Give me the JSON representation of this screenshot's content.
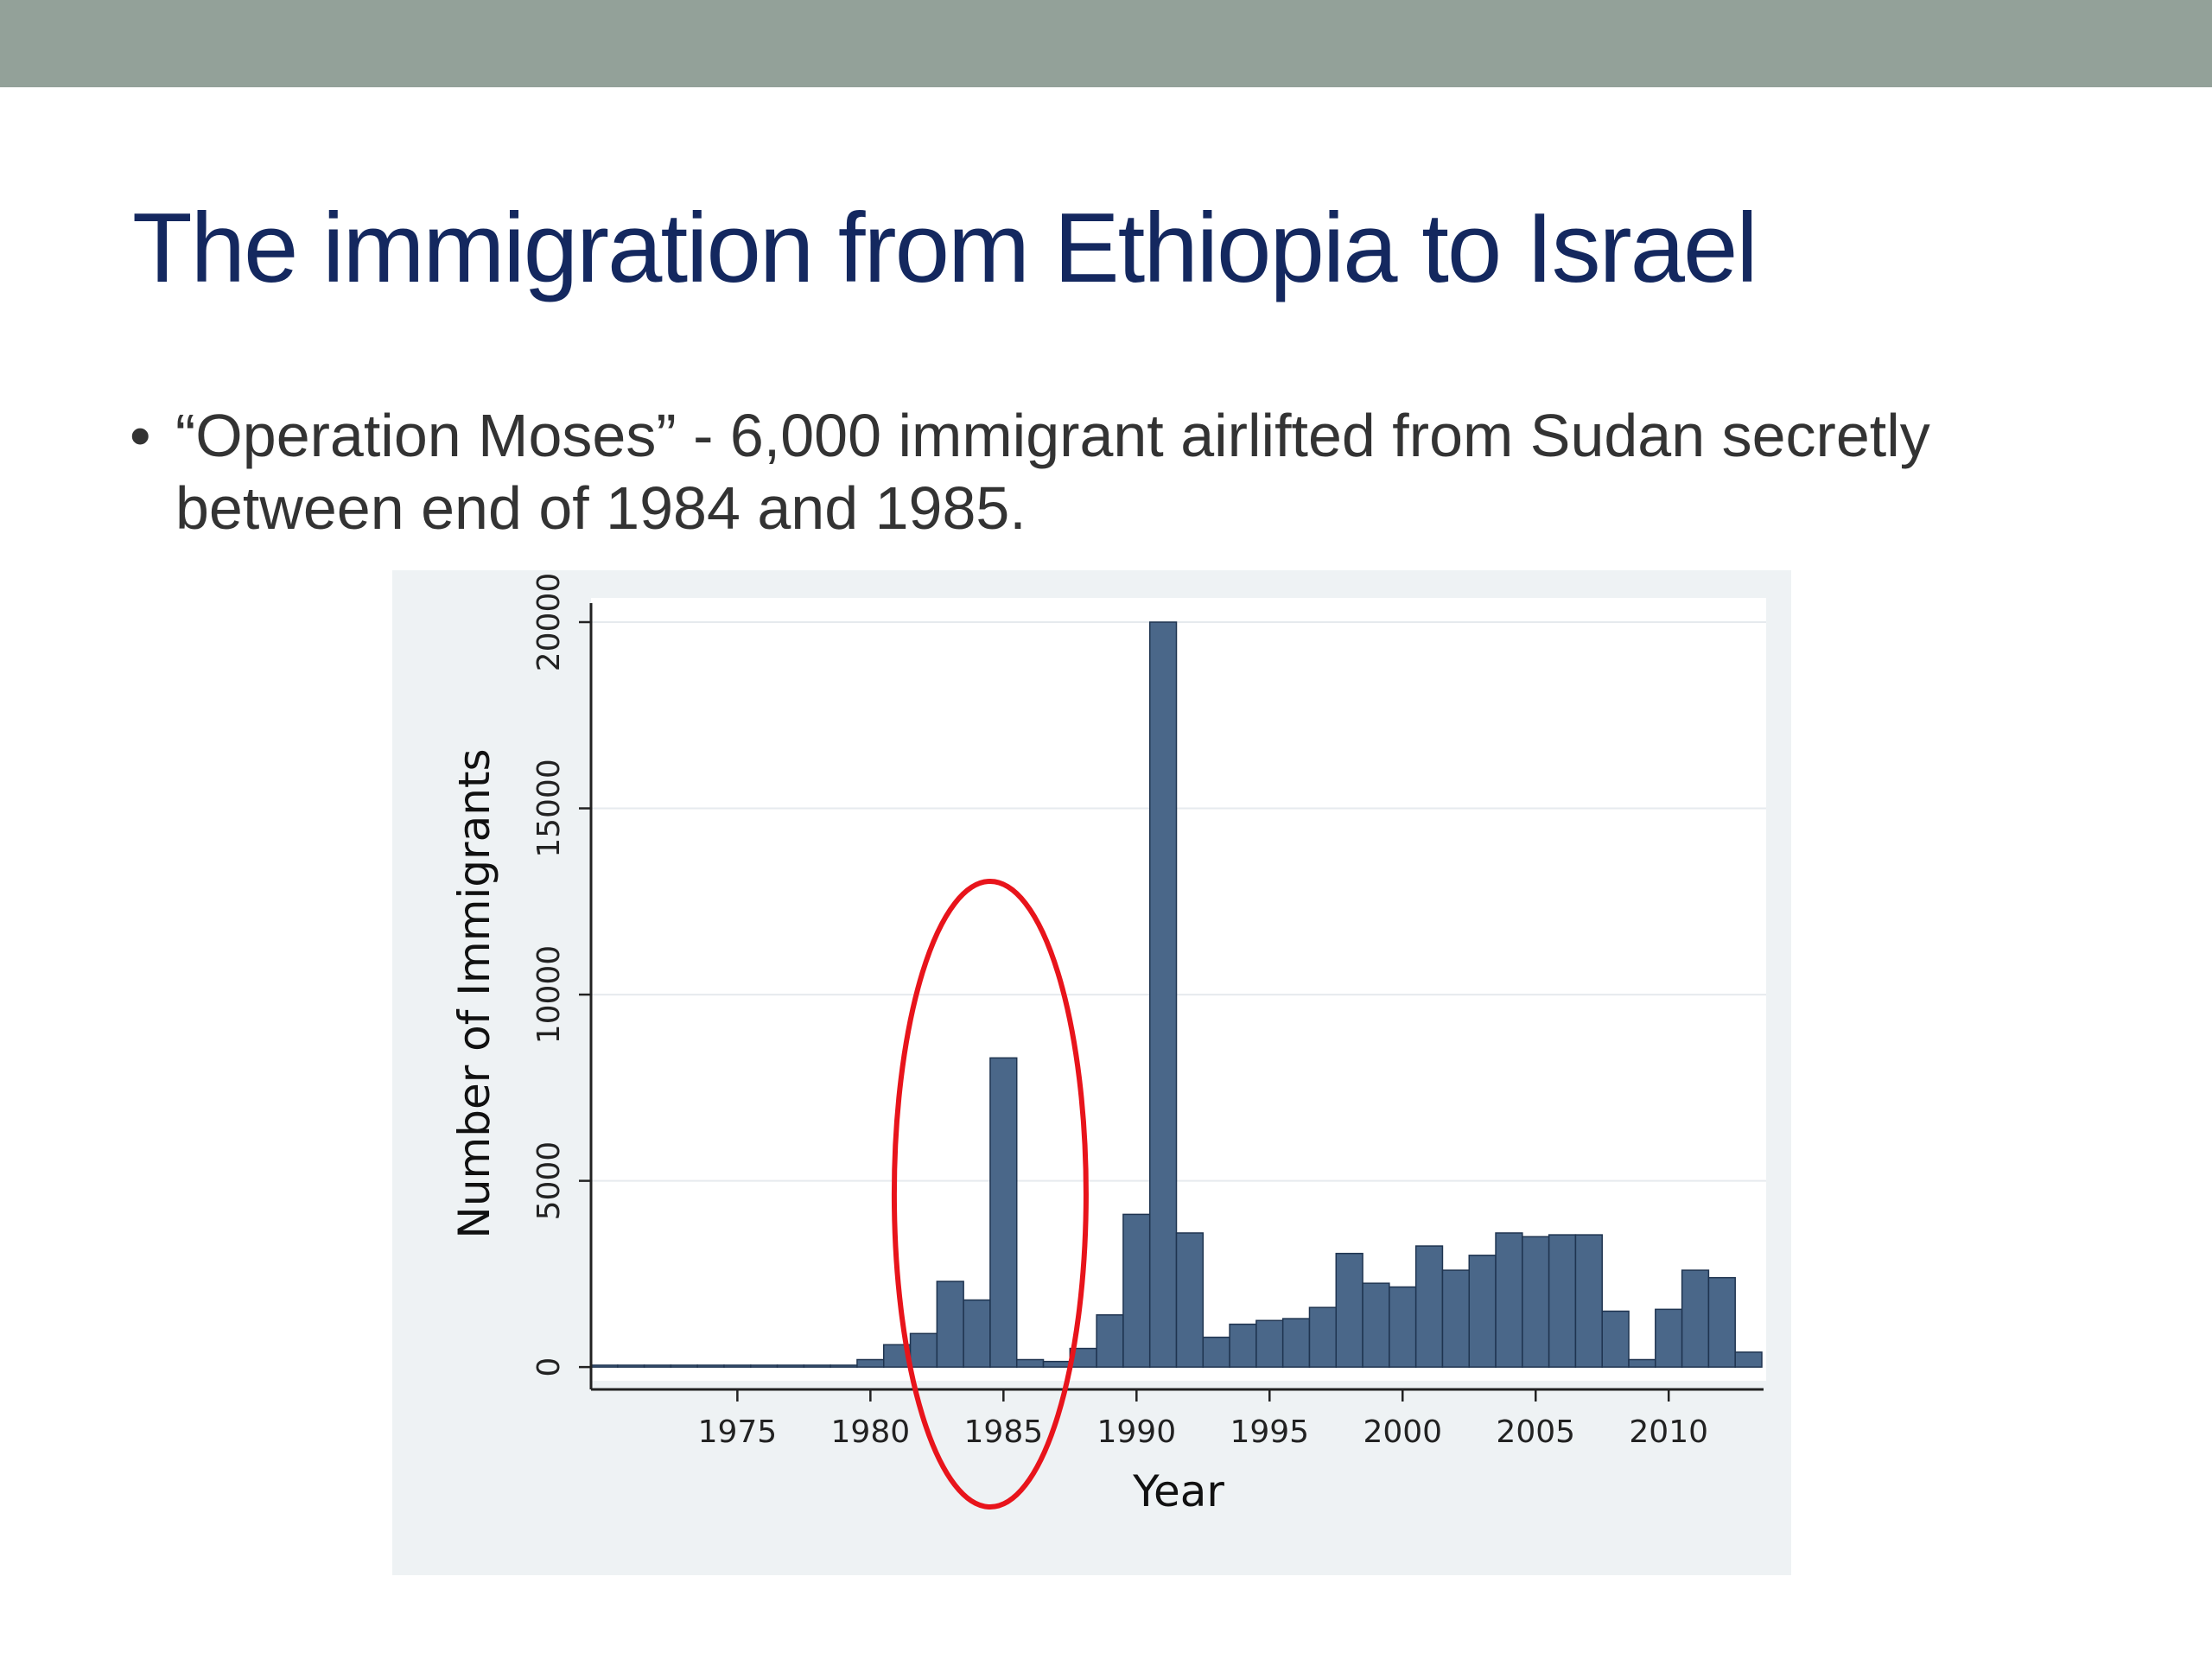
{
  "slide": {
    "title": "The immigration from Ethiopia to Israel",
    "bullet_symbol": "•",
    "bullet_text": "“Operation Moses”  - 6,000 immigrant airlifted from Sudan secretly between end of 1984 and 1985."
  },
  "chart_data": {
    "type": "bar",
    "title": "",
    "xlabel": "Year",
    "ylabel": "Number of Immigrants",
    "xticks": [
      1975,
      1980,
      1985,
      1990,
      1995,
      2000,
      2005,
      2010
    ],
    "yticks": [
      0,
      5000,
      10000,
      15000,
      20000
    ],
    "xlim": [
      1969.5,
      2013.5
    ],
    "ylim": [
      -600,
      20000
    ],
    "grid": true,
    "legend": "none",
    "bar_color": "#4a6789",
    "annotation": {
      "type": "ellipse",
      "color": "#e8141b",
      "around_years": [
        1984,
        1985
      ]
    },
    "x": [
      1970,
      1971,
      1972,
      1973,
      1974,
      1975,
      1976,
      1977,
      1978,
      1979,
      1980,
      1981,
      1982,
      1983,
      1984,
      1985,
      1986,
      1987,
      1988,
      1989,
      1990,
      1991,
      1992,
      1993,
      1994,
      1995,
      1996,
      1997,
      1998,
      1999,
      2000,
      2001,
      2002,
      2003,
      2004,
      2005,
      2006,
      2007,
      2008,
      2009,
      2010,
      2011,
      2012,
      2013
    ],
    "values": [
      50,
      50,
      50,
      50,
      50,
      50,
      50,
      50,
      50,
      50,
      200,
      600,
      900,
      2300,
      1800,
      8300,
      200,
      150,
      500,
      1400,
      4100,
      20000,
      3600,
      800,
      1150,
      1250,
      1300,
      1600,
      3050,
      2250,
      2150,
      3250,
      2600,
      3000,
      3600,
      3500,
      3550,
      3550,
      1500,
      200,
      1550,
      2600,
      2400,
      400
    ]
  }
}
